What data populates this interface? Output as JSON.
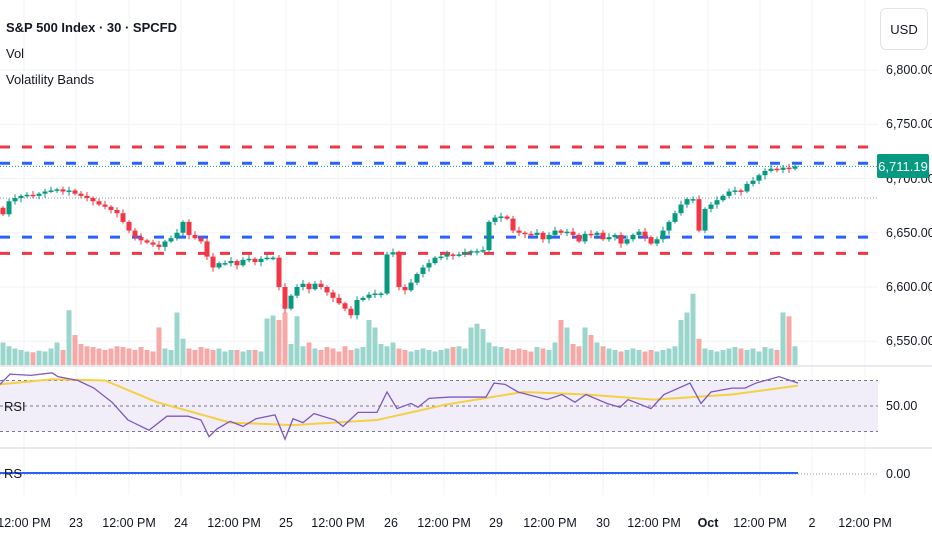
{
  "header": {
    "symbol_title": "S&P 500 Index · 30 · SPCFD",
    "indicators": [
      "Vol",
      "Volatility Bands"
    ]
  },
  "price_axis": {
    "currency_button": "USD",
    "ticks": [
      "6,800.00",
      "6,750.00",
      "6,700.00",
      "6,650.00",
      "6,600.00",
      "6,550.00"
    ],
    "tick_values": [
      6800,
      6750,
      6700,
      6650,
      6600,
      6550
    ],
    "last_price_label": "6,711.19",
    "last_price": 6711.19
  },
  "volatility_bands": {
    "upper_outer": 6729,
    "upper_inner": 6714,
    "lower_inner": 6646,
    "lower_outer": 6631,
    "reference_dotted": 6682,
    "outer_color": "#f23645",
    "inner_color": "#2962ff"
  },
  "colors": {
    "up": "#089981",
    "down": "#f23645",
    "vol_up": "#9bd6cd",
    "vol_down": "#f7a9a7",
    "rsi": "#7e57c2",
    "rsi_ma": "#f5d042",
    "rs": "#2962ff"
  },
  "candles_close": [
    6667,
    6679,
    6682,
    6684,
    6685,
    6684,
    6686,
    6688,
    6689,
    6690,
    6688,
    6689,
    6686,
    6684,
    6682,
    6679,
    6676,
    6674,
    6671,
    6668,
    6660,
    6652,
    6646,
    6643,
    6641,
    6639,
    6637,
    6642,
    6645,
    6650,
    6660,
    6648,
    6645,
    6642,
    6628,
    6618,
    6622,
    6622,
    6624,
    6620,
    6625,
    6626,
    6623,
    6626,
    6627,
    6627,
    6600,
    6580,
    6592,
    6600,
    6603,
    6598,
    6603,
    6600,
    6595,
    6590,
    6585,
    6580,
    6574,
    6588,
    6590,
    6593,
    6594,
    6594,
    6630,
    6632,
    6600,
    6597,
    6604,
    6612,
    6618,
    6622,
    6627,
    6628,
    6630,
    6629,
    6630,
    6632,
    6633,
    6633,
    6634,
    6660,
    6664,
    6665,
    6663,
    6652,
    6650,
    6649,
    6648,
    6650,
    6644,
    6648,
    6652,
    6650,
    6651,
    6648,
    6642,
    6649,
    6648,
    6650,
    6644,
    6646,
    6648,
    6640,
    6644,
    6648,
    6651,
    6646,
    6640,
    6644,
    6652,
    6660,
    6668,
    6676,
    6681,
    6681,
    6652,
    6672,
    6676,
    6680,
    6684,
    6688,
    6689,
    6688,
    6695,
    6698,
    6703,
    6707,
    6709,
    6708,
    6710,
    6709,
    6711.19
  ],
  "volume_relative": [
    30,
    25,
    22,
    20,
    18,
    17,
    19,
    18,
    22,
    30,
    20,
    73,
    40,
    28,
    25,
    24,
    22,
    20,
    22,
    25,
    24,
    22,
    20,
    24,
    20,
    18,
    50,
    22,
    20,
    70,
    35,
    22,
    20,
    24,
    22,
    20,
    22,
    18,
    20,
    20,
    18,
    20,
    20,
    18,
    62,
    66,
    60,
    70,
    28,
    65,
    25,
    30,
    22,
    20,
    24,
    22,
    18,
    25,
    20,
    22,
    24,
    60,
    50,
    28,
    25,
    30,
    22,
    20,
    18,
    20,
    22,
    20,
    18,
    20,
    22,
    24,
    25,
    22,
    50,
    55,
    48,
    30,
    25,
    24,
    22,
    20,
    22,
    20,
    18,
    24,
    22,
    20,
    30,
    60,
    50,
    28,
    25,
    50,
    40,
    30,
    25,
    22,
    20,
    18,
    20,
    22,
    20,
    18,
    20,
    18,
    20,
    22,
    25,
    60,
    70,
    95,
    35,
    22,
    20,
    18,
    20,
    22,
    24,
    22,
    20,
    22,
    18,
    24,
    22,
    20,
    70,
    65,
    25
  ],
  "rsi_pane": {
    "label": "RSI",
    "tick": "50.00",
    "levels": [
      70,
      50,
      30
    ],
    "rsi": [
      [
        0,
        67
      ],
      [
        10,
        75
      ],
      [
        31,
        74
      ],
      [
        52,
        76
      ],
      [
        58,
        73
      ],
      [
        78,
        70
      ],
      [
        94,
        64
      ],
      [
        112,
        53
      ],
      [
        128,
        39
      ],
      [
        149,
        31
      ],
      [
        167,
        42
      ],
      [
        188,
        42
      ],
      [
        201,
        39
      ],
      [
        209,
        26
      ],
      [
        217,
        32
      ],
      [
        230,
        38
      ],
      [
        243,
        34
      ],
      [
        256,
        40
      ],
      [
        275,
        43
      ],
      [
        285,
        24
      ],
      [
        293,
        40
      ],
      [
        303,
        37
      ],
      [
        314,
        44
      ],
      [
        335,
        39
      ],
      [
        343,
        34
      ],
      [
        358,
        45
      ],
      [
        377,
        45
      ],
      [
        387,
        61
      ],
      [
        397,
        48
      ],
      [
        411,
        52
      ],
      [
        418,
        49
      ],
      [
        429,
        56
      ],
      [
        450,
        57
      ],
      [
        471,
        57
      ],
      [
        486,
        57
      ],
      [
        494,
        68
      ],
      [
        505,
        67
      ],
      [
        518,
        61
      ],
      [
        547,
        55
      ],
      [
        562,
        59
      ],
      [
        575,
        53
      ],
      [
        586,
        59
      ],
      [
        607,
        52
      ],
      [
        620,
        49
      ],
      [
        628,
        55
      ],
      [
        651,
        48
      ],
      [
        664,
        59
      ],
      [
        690,
        68
      ],
      [
        701,
        52
      ],
      [
        711,
        61
      ],
      [
        732,
        64
      ],
      [
        745,
        64
      ],
      [
        756,
        68
      ],
      [
        779,
        73
      ],
      [
        798,
        68
      ]
    ],
    "rsi_ma": [
      [
        0,
        67
      ],
      [
        52,
        71
      ],
      [
        105,
        70
      ],
      [
        157,
        53
      ],
      [
        230,
        37
      ],
      [
        293,
        35
      ],
      [
        377,
        39
      ],
      [
        445,
        51
      ],
      [
        523,
        61
      ],
      [
        586,
        59
      ],
      [
        654,
        55
      ],
      [
        732,
        59
      ],
      [
        798,
        66
      ]
    ]
  },
  "rs_pane": {
    "label": "RS",
    "tick": "0.00",
    "value": 0
  },
  "time_axis": {
    "labels": [
      "12:00 PM",
      "23",
      "12:00 PM",
      "24",
      "12:00 PM",
      "25",
      "12:00 PM",
      "26",
      "12:00 PM",
      "29",
      "12:00 PM",
      "30",
      "12:00 PM",
      "Oct",
      "12:00 PM",
      "2",
      "12:00 PM"
    ]
  }
}
